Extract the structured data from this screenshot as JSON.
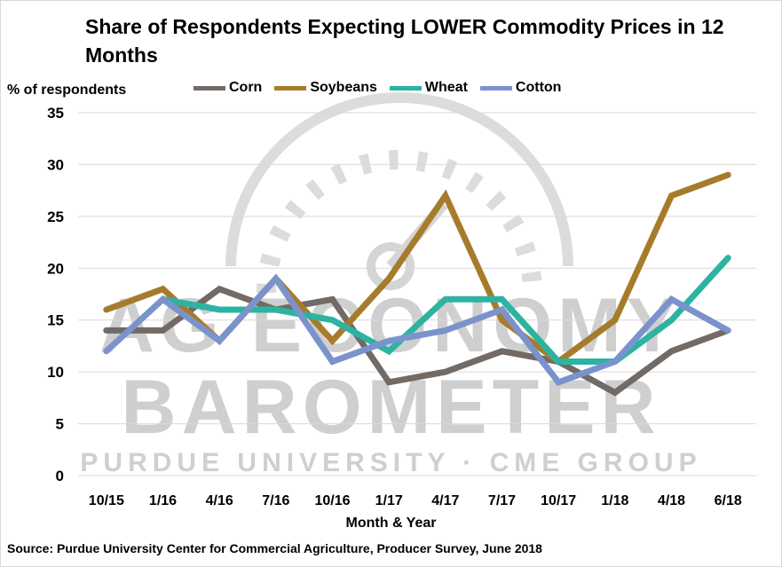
{
  "chart_data": {
    "type": "line",
    "title": "Share of Respondents Expecting LOWER Commodity Prices in 12 Months",
    "xlabel": "Month & Year",
    "ylabel": "% of respondents",
    "ylim": [
      0,
      35
    ],
    "yticks": [
      0,
      5,
      10,
      15,
      20,
      25,
      30,
      35
    ],
    "grid": true,
    "legend_position": "top",
    "categories": [
      "10/15",
      "1/16",
      "4/16",
      "7/16",
      "10/16",
      "1/17",
      "4/17",
      "7/17",
      "10/17",
      "1/18",
      "4/18",
      "6/18"
    ],
    "series": [
      {
        "name": "Corn",
        "color": "#716a65",
        "values": [
          14,
          14,
          18,
          16,
          17,
          9,
          10,
          12,
          11,
          8,
          12,
          14
        ]
      },
      {
        "name": "Soybeans",
        "color": "#a67c2c",
        "values": [
          16,
          18,
          13,
          19,
          13,
          19,
          27,
          15,
          11,
          15,
          27,
          29
        ]
      },
      {
        "name": "Wheat",
        "color": "#2db3a2",
        "values": [
          null,
          17,
          16,
          16,
          15,
          12,
          17,
          17,
          11,
          11,
          15,
          21
        ]
      },
      {
        "name": "Cotton",
        "color": "#7b93cc",
        "values": [
          12,
          17,
          13,
          19,
          11,
          13,
          14,
          16,
          9,
          11,
          17,
          14
        ]
      }
    ],
    "source": "Source: Purdue University Center for Commercial Agriculture, Producer Survey, June 2018"
  },
  "watermark": {
    "line1": "AG ECONOMY",
    "line2": "BAROMETER",
    "line3": "PURDUE UNIVERSITY  ·  CME GROUP"
  }
}
